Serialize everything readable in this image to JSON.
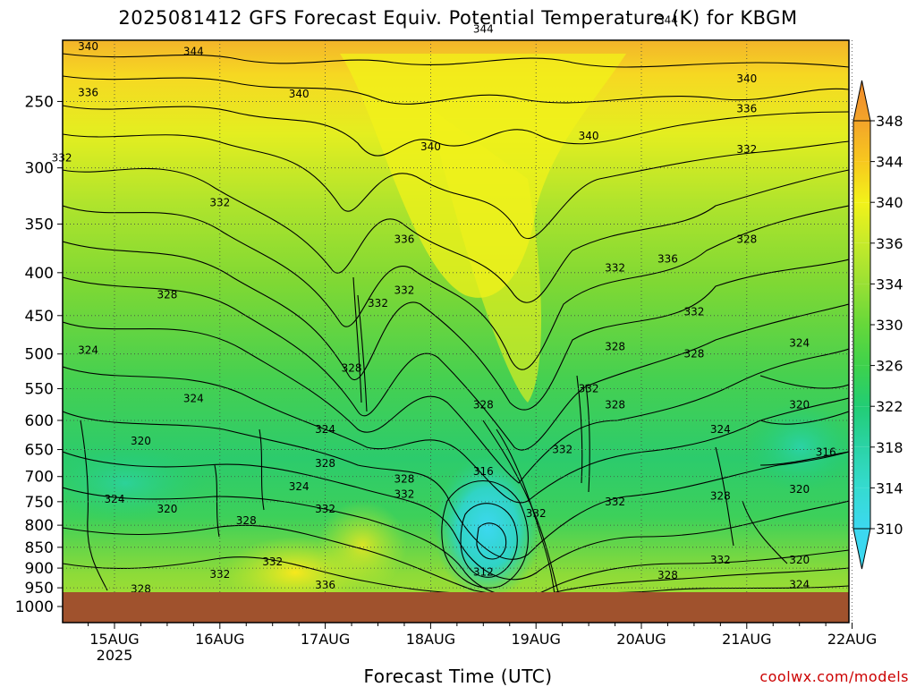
{
  "chart_data": {
    "type": "heatmap",
    "title": "2025081412 GFS Forecast Equiv. Potential Temperature (K) for KBGM",
    "xlabel": "Forecast Time (UTC)",
    "ylabel": "",
    "x_ticks": [
      "15AUG",
      "16AUG",
      "17AUG",
      "18AUG",
      "19AUG",
      "20AUG",
      "21AUG",
      "22AUG"
    ],
    "x_tick_year": "2025",
    "y_ticks": [
      "250",
      "300",
      "350",
      "400",
      "450",
      "500",
      "550",
      "600",
      "650",
      "700",
      "750",
      "800",
      "850",
      "900",
      "950",
      "1000"
    ],
    "y_scale": "log-pressure",
    "colorbar": {
      "labels": [
        "348",
        "344",
        "340",
        "336",
        "334",
        "330",
        "326",
        "322",
        "318",
        "314",
        "310"
      ],
      "range": [
        310,
        348
      ],
      "colors": [
        "#f3a42a",
        "#f7c81e",
        "#f2f21a",
        "#c6ea2a",
        "#99e034",
        "#66d83a",
        "#3ed24c",
        "#22cd74",
        "#2bd3a6",
        "#35dbd0",
        "#3cd8f0"
      ]
    },
    "contour_labels": [
      {
        "value": "340",
        "time": "14AUG 18Z",
        "pressure": 215
      },
      {
        "value": "344",
        "time": "15AUG 18Z",
        "pressure": 218
      },
      {
        "value": "344",
        "time": "18AUG 12Z",
        "pressure": 205
      },
      {
        "value": "344",
        "time": "20AUG 06Z",
        "pressure": 200
      },
      {
        "value": "336",
        "time": "14AUG 18Z",
        "pressure": 244
      },
      {
        "value": "340",
        "time": "16AUG 18Z",
        "pressure": 245
      },
      {
        "value": "340",
        "time": "18AUG 00Z",
        "pressure": 283
      },
      {
        "value": "340",
        "time": "19AUG 12Z",
        "pressure": 275
      },
      {
        "value": "340",
        "time": "21AUG 00Z",
        "pressure": 235
      },
      {
        "value": "336",
        "time": "21AUG 00Z",
        "pressure": 255
      },
      {
        "value": "332",
        "time": "14AUG 12Z",
        "pressure": 292
      },
      {
        "value": "332",
        "time": "16AUG 00Z",
        "pressure": 330
      },
      {
        "value": "332",
        "time": "21AUG 00Z",
        "pressure": 285
      },
      {
        "value": "336",
        "time": "17AUG 18Z",
        "pressure": 365
      },
      {
        "value": "336",
        "time": "20AUG 06Z",
        "pressure": 385
      },
      {
        "value": "328",
        "time": "21AUG 00Z",
        "pressure": 365
      },
      {
        "value": "332",
        "time": "19AUG 18Z",
        "pressure": 395
      },
      {
        "value": "328",
        "time": "15AUG 12Z",
        "pressure": 425
      },
      {
        "value": "332",
        "time": "17AUG 12Z",
        "pressure": 435
      },
      {
        "value": "332",
        "time": "17AUG 18Z",
        "pressure": 420
      },
      {
        "value": "332",
        "time": "20AUG 12Z",
        "pressure": 445
      },
      {
        "value": "324",
        "time": "14AUG 18Z",
        "pressure": 495
      },
      {
        "value": "328",
        "time": "19AUG 18Z",
        "pressure": 490
      },
      {
        "value": "328",
        "time": "20AUG 12Z",
        "pressure": 500
      },
      {
        "value": "324",
        "time": "21AUG 12Z",
        "pressure": 485
      },
      {
        "value": "328",
        "time": "17AUG 06Z",
        "pressure": 520
      },
      {
        "value": "324",
        "time": "15AUG 18Z",
        "pressure": 565
      },
      {
        "value": "328",
        "time": "18AUG 12Z",
        "pressure": 575
      },
      {
        "value": "332",
        "time": "19AUG 12Z",
        "pressure": 550
      },
      {
        "value": "328",
        "time": "19AUG 18Z",
        "pressure": 575
      },
      {
        "value": "324",
        "time": "17AUG 00Z",
        "pressure": 615
      },
      {
        "value": "324",
        "time": "20AUG 18Z",
        "pressure": 615
      },
      {
        "value": "320",
        "time": "21AUG 12Z",
        "pressure": 575
      },
      {
        "value": "320",
        "time": "15AUG 06Z",
        "pressure": 635
      },
      {
        "value": "332",
        "time": "19AUG 06Z",
        "pressure": 650
      },
      {
        "value": "316",
        "time": "21AUG 18Z",
        "pressure": 655
      },
      {
        "value": "328",
        "time": "17AUG 00Z",
        "pressure": 675
      },
      {
        "value": "316",
        "time": "18AUG 12Z",
        "pressure": 690
      },
      {
        "value": "328",
        "time": "17AUG 18Z",
        "pressure": 705
      },
      {
        "value": "324",
        "time": "16AUG 18Z",
        "pressure": 720
      },
      {
        "value": "332",
        "time": "17AUG 18Z",
        "pressure": 735
      },
      {
        "value": "328",
        "time": "20AUG 18Z",
        "pressure": 738
      },
      {
        "value": "320",
        "time": "21AUG 12Z",
        "pressure": 725
      },
      {
        "value": "324",
        "time": "15AUG 00Z",
        "pressure": 745
      },
      {
        "value": "332",
        "time": "19AUG 18Z",
        "pressure": 750
      },
      {
        "value": "320",
        "time": "15AUG 12Z",
        "pressure": 765
      },
      {
        "value": "332",
        "time": "17AUG 00Z",
        "pressure": 765
      },
      {
        "value": "332",
        "time": "19AUG 00Z",
        "pressure": 775
      },
      {
        "value": "328",
        "time": "16AUG 06Z",
        "pressure": 790
      },
      {
        "value": "332",
        "time": "20AUG 18Z",
        "pressure": 880
      },
      {
        "value": "320",
        "time": "21AUG 12Z",
        "pressure": 880
      },
      {
        "value": "332",
        "time": "16AUG 12Z",
        "pressure": 885
      },
      {
        "value": "312",
        "time": "18AUG 12Z",
        "pressure": 910
      },
      {
        "value": "328",
        "time": "20AUG 06Z",
        "pressure": 918
      },
      {
        "value": "324",
        "time": "21AUG 12Z",
        "pressure": 942
      },
      {
        "value": "336",
        "time": "17AUG 00Z",
        "pressure": 943
      },
      {
        "value": "328",
        "time": "15AUG 06Z",
        "pressure": 953
      },
      {
        "value": "332",
        "time": "16AUG 00Z",
        "pressure": 915
      }
    ],
    "grid": "dotted",
    "legend": "right colorbar"
  },
  "credit": "coolwx.com/models"
}
